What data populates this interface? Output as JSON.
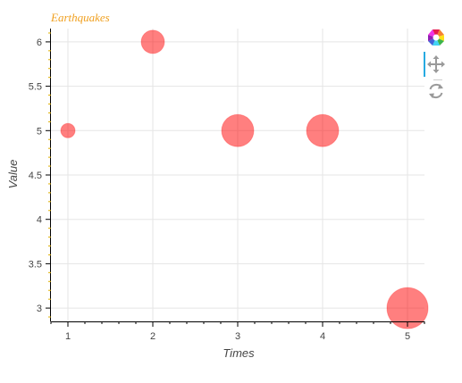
{
  "chart_data": {
    "type": "scatter",
    "title": "Earthquakes",
    "xlabel": "Times",
    "ylabel": "Value",
    "x": [
      1,
      2,
      3,
      4,
      5
    ],
    "y": [
      5,
      6,
      5,
      5,
      3
    ],
    "sizes": [
      1,
      2,
      3,
      3,
      4
    ],
    "xlim": [
      0.8,
      5.2
    ],
    "ylim": [
      2.85,
      6.15
    ],
    "x_ticks": [
      1,
      2,
      3,
      4,
      5
    ],
    "x_tick_labels": [
      "1",
      "2",
      "3",
      "4",
      "5"
    ],
    "y_ticks": [
      3,
      3.5,
      4,
      4.5,
      5,
      5.5,
      6
    ],
    "y_tick_labels": [
      "3",
      "3.5",
      "4",
      "4.5",
      "5",
      "5.5",
      "6"
    ],
    "grid": true,
    "marker_color": "#ff0000",
    "marker_alpha": 0.5,
    "title_color": "#f0a020"
  },
  "toolbar": {
    "icons": [
      "bokeh-logo-icon",
      "pan-tool-icon",
      "reset-tool-icon"
    ],
    "active_color": "#26aae1"
  }
}
